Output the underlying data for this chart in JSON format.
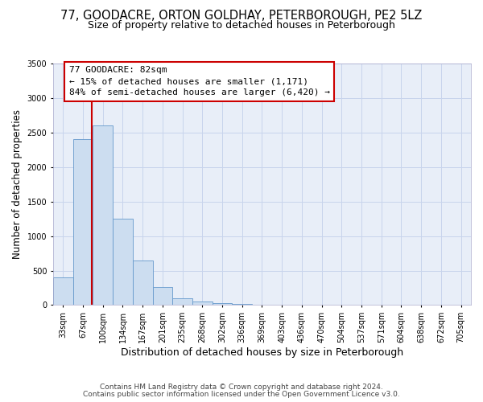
{
  "title": "77, GOODACRE, ORTON GOLDHAY, PETERBOROUGH, PE2 5LZ",
  "subtitle": "Size of property relative to detached houses in Peterborough",
  "xlabel": "Distribution of detached houses by size in Peterborough",
  "ylabel": "Number of detached properties",
  "bar_labels": [
    "33sqm",
    "67sqm",
    "100sqm",
    "134sqm",
    "167sqm",
    "201sqm",
    "235sqm",
    "268sqm",
    "302sqm",
    "336sqm",
    "369sqm",
    "403sqm",
    "436sqm",
    "470sqm",
    "504sqm",
    "537sqm",
    "571sqm",
    "604sqm",
    "638sqm",
    "672sqm",
    "705sqm"
  ],
  "bar_values": [
    400,
    2400,
    2600,
    1250,
    640,
    260,
    100,
    55,
    30,
    20,
    10,
    0,
    0,
    0,
    0,
    0,
    0,
    0,
    0,
    0,
    0
  ],
  "bar_color": "#ccddf0",
  "bar_edge_color": "#6699cc",
  "annotation_line_color": "#cc0000",
  "annotation_box_text": "77 GOODACRE: 82sqm\n← 15% of detached houses are smaller (1,171)\n84% of semi-detached houses are larger (6,420) →",
  "annotation_box_color": "#ffffff",
  "annotation_box_edge_color": "#cc0000",
  "ylim": [
    0,
    3500
  ],
  "yticks": [
    0,
    500,
    1000,
    1500,
    2000,
    2500,
    3000,
    3500
  ],
  "grid_color": "#c8d4ec",
  "background_color": "#e8eef8",
  "footer_line1": "Contains HM Land Registry data © Crown copyright and database right 2024.",
  "footer_line2": "Contains public sector information licensed under the Open Government Licence v3.0.",
  "title_fontsize": 10.5,
  "subtitle_fontsize": 9,
  "xlabel_fontsize": 9,
  "ylabel_fontsize": 8.5,
  "tick_fontsize": 7,
  "annotation_fontsize": 8,
  "footer_fontsize": 6.5
}
